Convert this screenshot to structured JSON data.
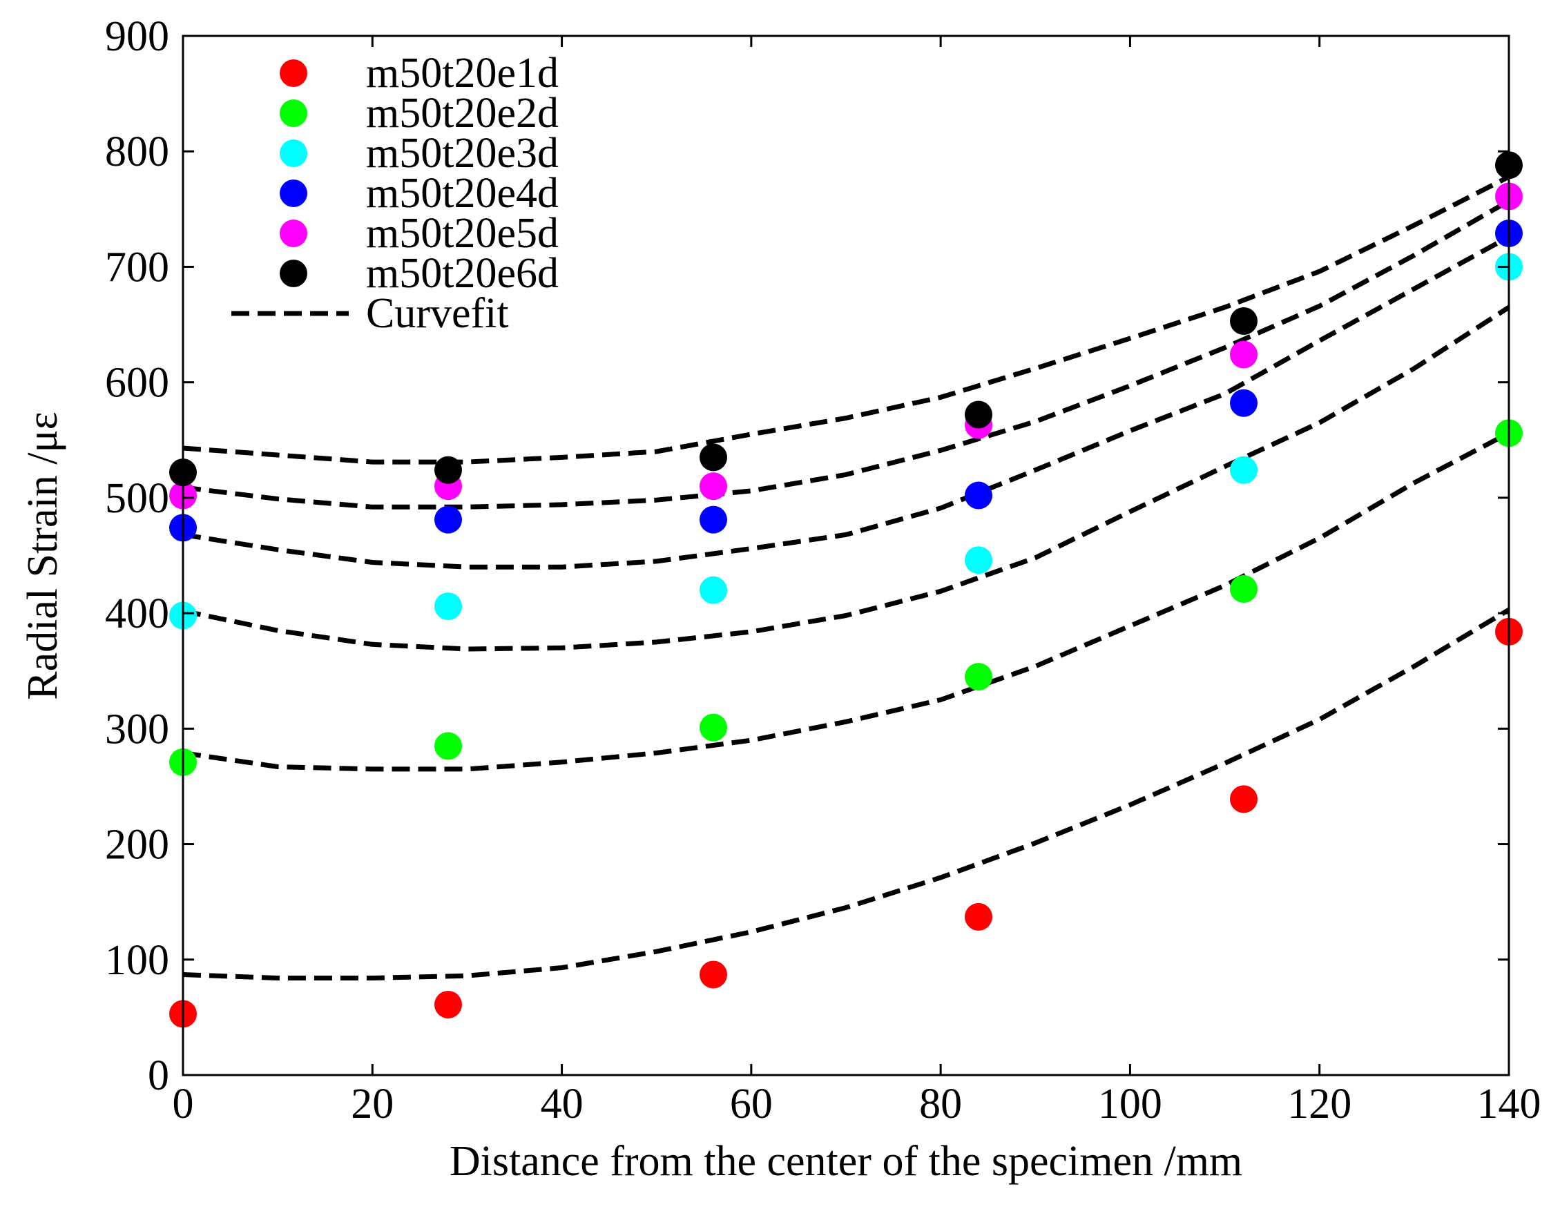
{
  "chart_data": {
    "type": "scatter",
    "title": "",
    "xlabel": "Distance from the center of the specimen /mm",
    "ylabel": "Radial Strain /με",
    "xlim": [
      0,
      140
    ],
    "ylim": [
      0,
      900
    ],
    "xticks": [
      0,
      20,
      40,
      60,
      80,
      100,
      120,
      140
    ],
    "yticks": [
      0,
      100,
      200,
      300,
      400,
      500,
      600,
      700,
      800,
      900
    ],
    "grid": false,
    "legend_position": "top-left",
    "x": [
      0,
      28,
      56,
      84,
      112,
      140
    ],
    "series": [
      {
        "name": "m50t20e1d",
        "color": "#ff0000",
        "values": [
          53,
          61,
          87,
          137,
          239,
          384
        ]
      },
      {
        "name": "m50t20e2d",
        "color": "#00ff00",
        "values": [
          271,
          285,
          301,
          345,
          421,
          556
        ]
      },
      {
        "name": "m50t20e3d",
        "color": "#00ffff",
        "values": [
          398,
          406,
          420,
          446,
          524,
          700
        ]
      },
      {
        "name": "m50t20e4d",
        "color": "#0000ff",
        "values": [
          474,
          481,
          481,
          502,
          582,
          729
        ]
      },
      {
        "name": "m50t20e5d",
        "color": "#ff00ff",
        "values": [
          502,
          510,
          510,
          563,
          624,
          761
        ]
      },
      {
        "name": "m50t20e6d",
        "color": "#000000",
        "values": [
          522,
          524,
          535,
          572,
          653,
          788
        ]
      }
    ],
    "curvefit": {
      "name": "Curvefit",
      "color": "#000000",
      "style": "dashed",
      "x": [
        0,
        10,
        20,
        30,
        40,
        50,
        60,
        70,
        80,
        90,
        100,
        110,
        120,
        130,
        140
      ],
      "lines": [
        [
          87,
          84,
          84,
          86,
          93,
          107,
          124,
          145,
          171,
          201,
          234,
          270,
          308,
          354,
          403
        ],
        [
          279,
          267,
          265,
          265,
          271,
          279,
          290,
          306,
          325,
          354,
          389,
          424,
          465,
          513,
          556
        ],
        [
          402,
          385,
          373,
          369,
          370,
          375,
          384,
          398,
          419,
          448,
          488,
          527,
          565,
          612,
          665
        ],
        [
          468,
          455,
          444,
          440,
          440,
          445,
          456,
          468,
          491,
          524,
          558,
          590,
          636,
          681,
          726
        ],
        [
          509,
          499,
          492,
          492,
          494,
          498,
          506,
          520,
          541,
          566,
          597,
          630,
          666,
          710,
          757
        ],
        [
          543,
          537,
          531,
          531,
          535,
          540,
          555,
          569,
          587,
          612,
          638,
          665,
          696,
          736,
          778
        ]
      ]
    }
  }
}
